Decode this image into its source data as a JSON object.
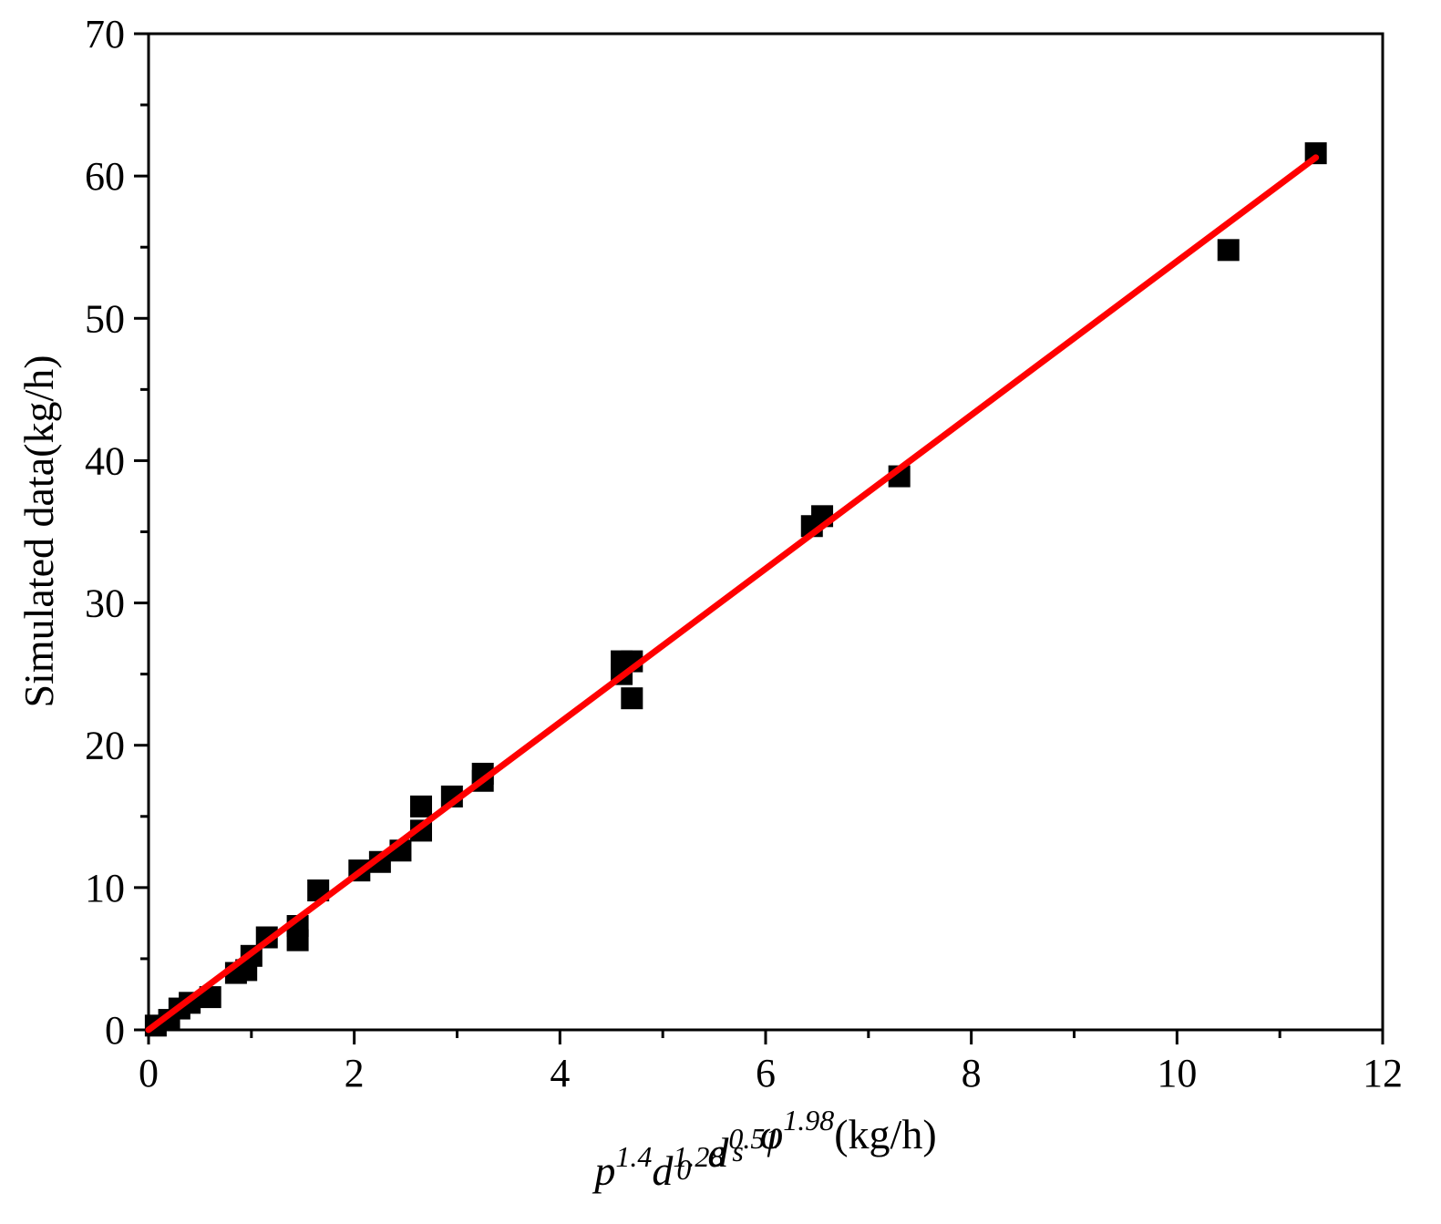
{
  "chart_data": {
    "type": "scatter",
    "title": "",
    "xlabel": {
      "parts": [
        {
          "text": "p",
          "italic": true,
          "pos": "base"
        },
        {
          "text": "1.4",
          "italic": true,
          "pos": "sup"
        },
        {
          "text": "d",
          "italic": true,
          "pos": "base"
        },
        {
          "text": "1.28",
          "italic": true,
          "pos": "sup"
        },
        {
          "text": "0",
          "italic": true,
          "pos": "sub"
        },
        {
          "text": "d",
          "italic": true,
          "pos": "base"
        },
        {
          "text": "0.51",
          "italic": true,
          "pos": "sup"
        },
        {
          "text": "s",
          "italic": true,
          "pos": "sub"
        },
        {
          "text": "φ",
          "italic": true,
          "pos": "base"
        },
        {
          "text": "1.98",
          "italic": true,
          "pos": "sup"
        },
        {
          "text": "(kg/h)",
          "italic": false,
          "pos": "base"
        }
      ]
    },
    "ylabel": "Simulated data(kg/h)",
    "xlim": [
      0,
      12
    ],
    "ylim": [
      0,
      70
    ],
    "x_ticks": [
      "0",
      "2",
      "4",
      "6",
      "8",
      "10",
      "12"
    ],
    "y_ticks": [
      "0",
      "10",
      "20",
      "30",
      "40",
      "50",
      "60",
      "70"
    ],
    "x_tick_values": [
      0,
      2,
      4,
      6,
      8,
      10,
      12
    ],
    "y_tick_values": [
      0,
      10,
      20,
      30,
      40,
      50,
      60,
      70
    ],
    "x_minor_step": 1,
    "y_minor_step": 5,
    "grid": false,
    "legend": "none",
    "series": [
      {
        "marker": "square",
        "color": "#000000",
        "points": [
          [
            0.07,
            0.3
          ],
          [
            0.2,
            0.7
          ],
          [
            0.3,
            1.5
          ],
          [
            0.4,
            1.9
          ],
          [
            0.6,
            2.3
          ],
          [
            0.85,
            4.0
          ],
          [
            0.95,
            4.2
          ],
          [
            1.0,
            5.2
          ],
          [
            1.15,
            6.5
          ],
          [
            1.45,
            6.3
          ],
          [
            1.45,
            7.3
          ],
          [
            1.65,
            9.8
          ],
          [
            2.05,
            11.2
          ],
          [
            2.25,
            11.8
          ],
          [
            2.45,
            12.6
          ],
          [
            2.65,
            14.0
          ],
          [
            2.65,
            15.7
          ],
          [
            2.95,
            16.4
          ],
          [
            3.25,
            17.5
          ],
          [
            3.25,
            18.0
          ],
          [
            4.6,
            25.0
          ],
          [
            4.6,
            25.9
          ],
          [
            4.7,
            25.9
          ],
          [
            4.7,
            23.3
          ],
          [
            6.45,
            35.4
          ],
          [
            6.55,
            36.1
          ],
          [
            7.3,
            38.9
          ],
          [
            10.5,
            54.8
          ],
          [
            11.35,
            61.6
          ]
        ]
      },
      {
        "type": "line",
        "color": "#ff0000",
        "points": [
          [
            0,
            0
          ],
          [
            11.35,
            61.3
          ]
        ]
      }
    ]
  }
}
